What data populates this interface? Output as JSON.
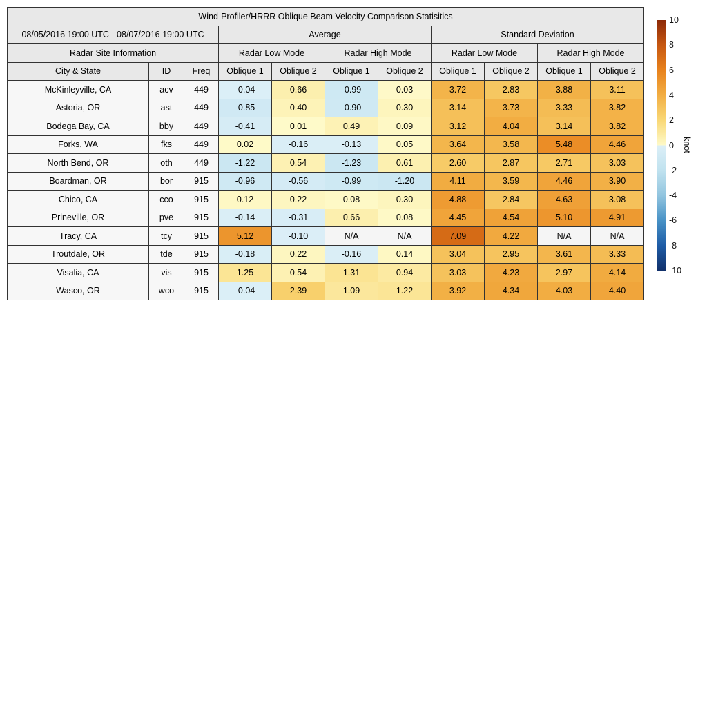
{
  "colors": {
    "header_bg": "#e8e8e8",
    "label_bg": "#f7f7f7",
    "na_bg": "#f5f5f5",
    "border": "#333333",
    "text": "#000000",
    "background": "#ffffff"
  },
  "chart_data": {
    "type": "heatmap-table",
    "title": "Wind-Profiler/HRRR Oblique Beam Velocity Comparison Statisitics",
    "header": {
      "date_range": "08/05/2016 19:00 UTC - 08/07/2016 19:00 UTC",
      "groups": [
        "Average",
        "Standard Deviation"
      ],
      "site_info": "Radar Site Information",
      "modes": [
        "Radar Low Mode",
        "Radar High Mode"
      ],
      "columns": [
        "City & State",
        "ID",
        "Freq"
      ],
      "oblique": [
        "Oblique 1",
        "Oblique 2"
      ]
    },
    "na_value": "N/A",
    "rows": [
      {
        "city": "McKinleyville, CA",
        "id": "acv",
        "freq": 449,
        "values": [
          -0.04,
          0.66,
          -0.99,
          0.03,
          3.72,
          2.83,
          3.88,
          3.11
        ]
      },
      {
        "city": "Astoria, OR",
        "id": "ast",
        "freq": 449,
        "values": [
          -0.85,
          0.4,
          -0.9,
          0.3,
          3.14,
          3.73,
          3.33,
          3.82
        ]
      },
      {
        "city": "Bodega Bay, CA",
        "id": "bby",
        "freq": 449,
        "values": [
          -0.41,
          0.01,
          0.49,
          0.09,
          3.12,
          4.04,
          3.14,
          3.82
        ]
      },
      {
        "city": "Forks, WA",
        "id": "fks",
        "freq": 449,
        "values": [
          0.02,
          -0.16,
          -0.13,
          0.05,
          3.64,
          3.58,
          5.48,
          4.46
        ]
      },
      {
        "city": "North Bend, OR",
        "id": "oth",
        "freq": 449,
        "values": [
          -1.22,
          0.54,
          -1.23,
          0.61,
          2.6,
          2.87,
          2.71,
          3.03
        ]
      },
      {
        "city": "Boardman, OR",
        "id": "bor",
        "freq": 915,
        "values": [
          -0.96,
          -0.56,
          -0.99,
          -1.2,
          4.11,
          3.59,
          4.46,
          3.9
        ]
      },
      {
        "city": "Chico, CA",
        "id": "cco",
        "freq": 915,
        "values": [
          0.12,
          0.22,
          0.08,
          0.3,
          4.88,
          2.84,
          4.63,
          3.08
        ]
      },
      {
        "city": "Prineville, OR",
        "id": "pve",
        "freq": 915,
        "values": [
          -0.14,
          -0.31,
          0.66,
          0.08,
          4.45,
          4.54,
          5.1,
          4.91
        ]
      },
      {
        "city": "Tracy, CA",
        "id": "tcy",
        "freq": 915,
        "values": [
          5.12,
          -0.1,
          "N/A",
          "N/A",
          7.09,
          4.22,
          "N/A",
          "N/A"
        ]
      },
      {
        "city": "Troutdale, OR",
        "id": "tde",
        "freq": 915,
        "values": [
          -0.18,
          0.22,
          -0.16,
          0.14,
          3.04,
          2.95,
          3.61,
          3.33
        ]
      },
      {
        "city": "Visalia, CA",
        "id": "vis",
        "freq": 915,
        "values": [
          1.25,
          0.54,
          1.31,
          0.94,
          3.03,
          4.23,
          2.97,
          4.14
        ]
      },
      {
        "city": "Wasco, OR",
        "id": "wco",
        "freq": 915,
        "values": [
          -0.04,
          2.39,
          1.09,
          1.22,
          3.92,
          4.34,
          4.03,
          4.4
        ]
      }
    ],
    "colorbar": {
      "label": "knot",
      "min": -10,
      "max": 10,
      "ticks": [
        10,
        8,
        6,
        4,
        2,
        0,
        -2,
        -4,
        -6,
        -8,
        -10
      ],
      "colormap_stops": [
        [
          10,
          "#8c2907"
        ],
        [
          8,
          "#c65711"
        ],
        [
          6,
          "#e8821c"
        ],
        [
          4,
          "#f2ae43"
        ],
        [
          2,
          "#f9d876"
        ],
        [
          0,
          "#fefac9"
        ],
        [
          0,
          "#dceff7"
        ],
        [
          -2,
          "#c0e2ef"
        ],
        [
          -4,
          "#92c5df"
        ],
        [
          -6,
          "#4892c6"
        ],
        [
          -8,
          "#1e5ca6"
        ],
        [
          -10,
          "#11306a"
        ]
      ]
    }
  }
}
